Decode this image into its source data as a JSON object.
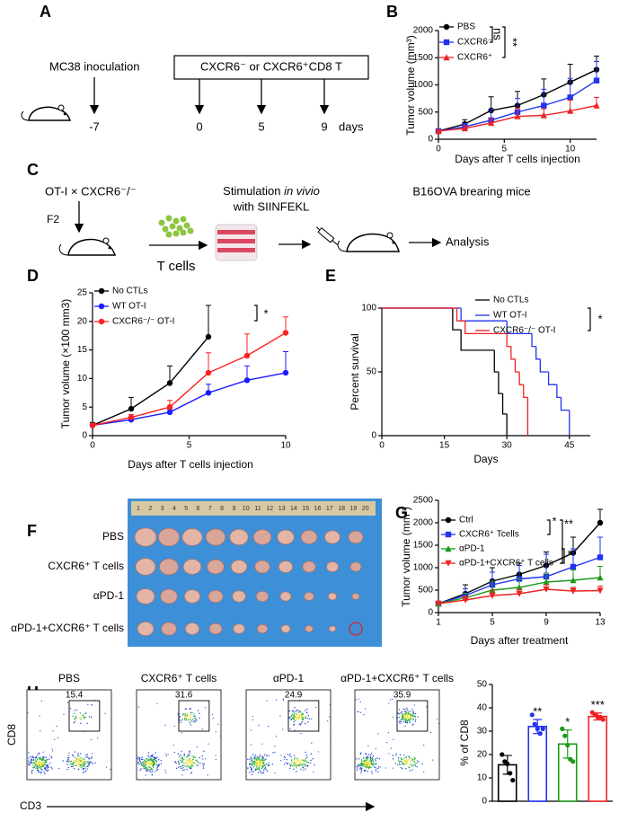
{
  "schematic_a": {
    "label": "A",
    "inoculation": "MC38 inoculation",
    "treatment": "CXCR6⁻ or CXCR6⁺CD8 T",
    "days": [
      -7,
      0,
      5,
      9
    ],
    "unit": "days"
  },
  "schematic_c": {
    "label": "C",
    "cross": "OT-I × CXCR6⁻/⁻",
    "generation": "F2",
    "cells": "T cells",
    "stimulation_1": "Stimulation ",
    "stimulation_italic": "in vivio",
    "stimulation_2": "with SIINFEKL",
    "mice": "B16OVA brearing mice",
    "analysis": "Analysis"
  },
  "photo_f": {
    "label": "F",
    "ruler": [
      1,
      2,
      3,
      4,
      5,
      6,
      7,
      8,
      9,
      10,
      11,
      12,
      13,
      14,
      15,
      16,
      17,
      18,
      19,
      20
    ],
    "rows": [
      "PBS",
      "CXCR6⁺ T cells",
      "αPD-1",
      "αPD-1+CXCR6⁺ T cells"
    ]
  },
  "flow_h": {
    "label": "H",
    "y_label": "CD8",
    "x_label": "CD3",
    "plots": [
      {
        "title": "PBS",
        "gate": 15.4
      },
      {
        "title": "CXCR6⁺ T cells",
        "gate": 31.6
      },
      {
        "title": "αPD-1",
        "gate": 24.9
      },
      {
        "title": "αPD-1+CXCR6⁺ T cells",
        "gate": 35.9
      }
    ]
  },
  "chart_data": [
    {
      "type": "line",
      "panel": "B",
      "y_label": "Tumor volume (mm³)",
      "x_label": "Days after T cells injection",
      "x": [
        0,
        2,
        4,
        6,
        8,
        10,
        12
      ],
      "xlim": [
        0,
        12
      ],
      "xticks": [
        0,
        5,
        10
      ],
      "ylim": [
        0,
        2000
      ],
      "yticks": [
        0,
        500,
        1000,
        1500,
        2000
      ],
      "series": [
        {
          "name": "PBS",
          "color": "#000000",
          "marker": "circle",
          "values": [
            150,
            280,
            530,
            620,
            820,
            1050,
            1280
          ],
          "errors": [
            20,
            80,
            250,
            260,
            290,
            330,
            250
          ]
        },
        {
          "name": "CXCR6⁻",
          "color": "#2233ee",
          "marker": "square",
          "values": [
            150,
            230,
            350,
            500,
            620,
            770,
            1080
          ],
          "errors": [
            20,
            60,
            200,
            250,
            300,
            350,
            350
          ]
        },
        {
          "name": "CXCR6⁺",
          "color": "#ee2222",
          "marker": "triangle",
          "values": [
            150,
            200,
            300,
            420,
            440,
            520,
            620
          ],
          "errors": [
            20,
            50,
            80,
            150,
            120,
            200,
            150
          ]
        }
      ],
      "annotations": [
        "ns",
        "**"
      ]
    },
    {
      "type": "line",
      "panel": "D",
      "y_label": "Tumor volume (×100 mm3)",
      "x_label": "Days after T cells injection",
      "xlim": [
        0,
        10
      ],
      "xticks": [
        0,
        5,
        10
      ],
      "ylim": [
        0,
        25
      ],
      "yticks": [
        0,
        5,
        10,
        15,
        20,
        25
      ],
      "series": [
        {
          "name": "No CTLs",
          "color": "#000000",
          "marker": "circle",
          "x": [
            0,
            2,
            4,
            6
          ],
          "values": [
            1.8,
            4.7,
            9.2,
            17.3
          ],
          "errors": [
            0.5,
            2,
            3,
            5.5
          ]
        },
        {
          "name": "WT OT-I",
          "color": "#1a1aff",
          "marker": "circle",
          "x": [
            0,
            2,
            4,
            6,
            8,
            10
          ],
          "values": [
            1.8,
            2.8,
            4.1,
            7.5,
            9.7,
            11
          ],
          "errors": [
            0.3,
            0.3,
            0.5,
            1.5,
            2.5,
            3.7
          ]
        },
        {
          "name": "CXCR6⁻/⁻ OT-I",
          "color": "#ff2020",
          "marker": "circle",
          "x": [
            0,
            2,
            4,
            6,
            8,
            10
          ],
          "values": [
            1.8,
            3.2,
            5,
            11,
            14,
            18
          ],
          "errors": [
            0.3,
            0.5,
            1.2,
            3.5,
            3.8,
            2.8
          ]
        }
      ],
      "annotations": [
        "*"
      ]
    },
    {
      "type": "step",
      "panel": "E",
      "y_label": "Percent survival",
      "x_label": "Days",
      "xlim": [
        0,
        50
      ],
      "xticks": [
        0,
        15,
        30,
        45
      ],
      "ylim": [
        0,
        100
      ],
      "yticks": [
        0,
        50,
        100
      ],
      "series": [
        {
          "name": "No CTLs",
          "color": "#000000",
          "x": [
            0,
            17,
            19,
            27,
            28,
            29,
            30
          ],
          "values": [
            100,
            83,
            67,
            50,
            33,
            17,
            0
          ]
        },
        {
          "name": "WT OT-I",
          "color": "#2233ee",
          "x": [
            0,
            19,
            30,
            36,
            37,
            38,
            40,
            42,
            43,
            45
          ],
          "values": [
            100,
            90,
            80,
            70,
            60,
            50,
            40,
            30,
            20,
            0
          ]
        },
        {
          "name": "CXCR6⁻/⁻ OT-I",
          "color": "#ee2222",
          "x": [
            0,
            18,
            20,
            30,
            31,
            32,
            33,
            34,
            35
          ],
          "values": [
            100,
            90,
            80,
            70,
            60,
            50,
            40,
            30,
            0
          ]
        }
      ],
      "annotations": [
        "*"
      ]
    },
    {
      "type": "line",
      "panel": "G",
      "y_label": "Tumor volume (mm³)",
      "x_label": "Days after treatment",
      "x": [
        1,
        3,
        5,
        7,
        9,
        11,
        13
      ],
      "xlim": [
        1,
        13
      ],
      "xticks": [
        1,
        5,
        9,
        13
      ],
      "ylim": [
        0,
        2500
      ],
      "yticks": [
        0,
        500,
        1000,
        1500,
        2000,
        2500
      ],
      "series": [
        {
          "name": "Ctrl",
          "color": "#000000",
          "marker": "circle",
          "values": [
            200,
            420,
            700,
            850,
            1050,
            1330,
            2000
          ],
          "errors": [
            20,
            200,
            300,
            250,
            300,
            350,
            300
          ]
        },
        {
          "name": "CXCR6⁺ Tcells",
          "color": "#2233ee",
          "marker": "square",
          "values": [
            200,
            380,
            620,
            750,
            800,
            1020,
            1230
          ],
          "errors": [
            20,
            150,
            280,
            300,
            500,
            400,
            450
          ]
        },
        {
          "name": "αPD-1",
          "color": "#1a9a1a",
          "marker": "triangle",
          "values": [
            200,
            330,
            500,
            560,
            680,
            720,
            780
          ],
          "errors": [
            20,
            100,
            200,
            200,
            200,
            230,
            250
          ]
        },
        {
          "name": "αPD-1+CXCR6⁺ T cells",
          "color": "#ee2222",
          "marker": "triangle-down",
          "values": [
            200,
            280,
            380,
            420,
            520,
            480,
            490
          ],
          "errors": [
            20,
            80,
            120,
            100,
            100,
            80,
            100
          ]
        }
      ],
      "annotations": [
        "*",
        "**",
        "*"
      ]
    },
    {
      "type": "bar",
      "y_label": "% of CD8",
      "ylim": [
        0,
        50
      ],
      "yticks": [
        0,
        10,
        20,
        30,
        40,
        50
      ],
      "values": [
        15.6,
        32,
        24.5,
        36.3
      ],
      "errors": [
        4,
        3,
        6,
        1.5
      ],
      "colors": [
        "#000000",
        "#2233ee",
        "#1a9a1a",
        "#ee2222"
      ],
      "points": [
        [
          20,
          17,
          16,
          12,
          9
        ],
        [
          37,
          33,
          31,
          29,
          31
        ],
        [
          31,
          28,
          24,
          18,
          17
        ],
        [
          38,
          37,
          36,
          36,
          35
        ]
      ],
      "significance": [
        null,
        "**",
        "*",
        "***"
      ]
    }
  ]
}
